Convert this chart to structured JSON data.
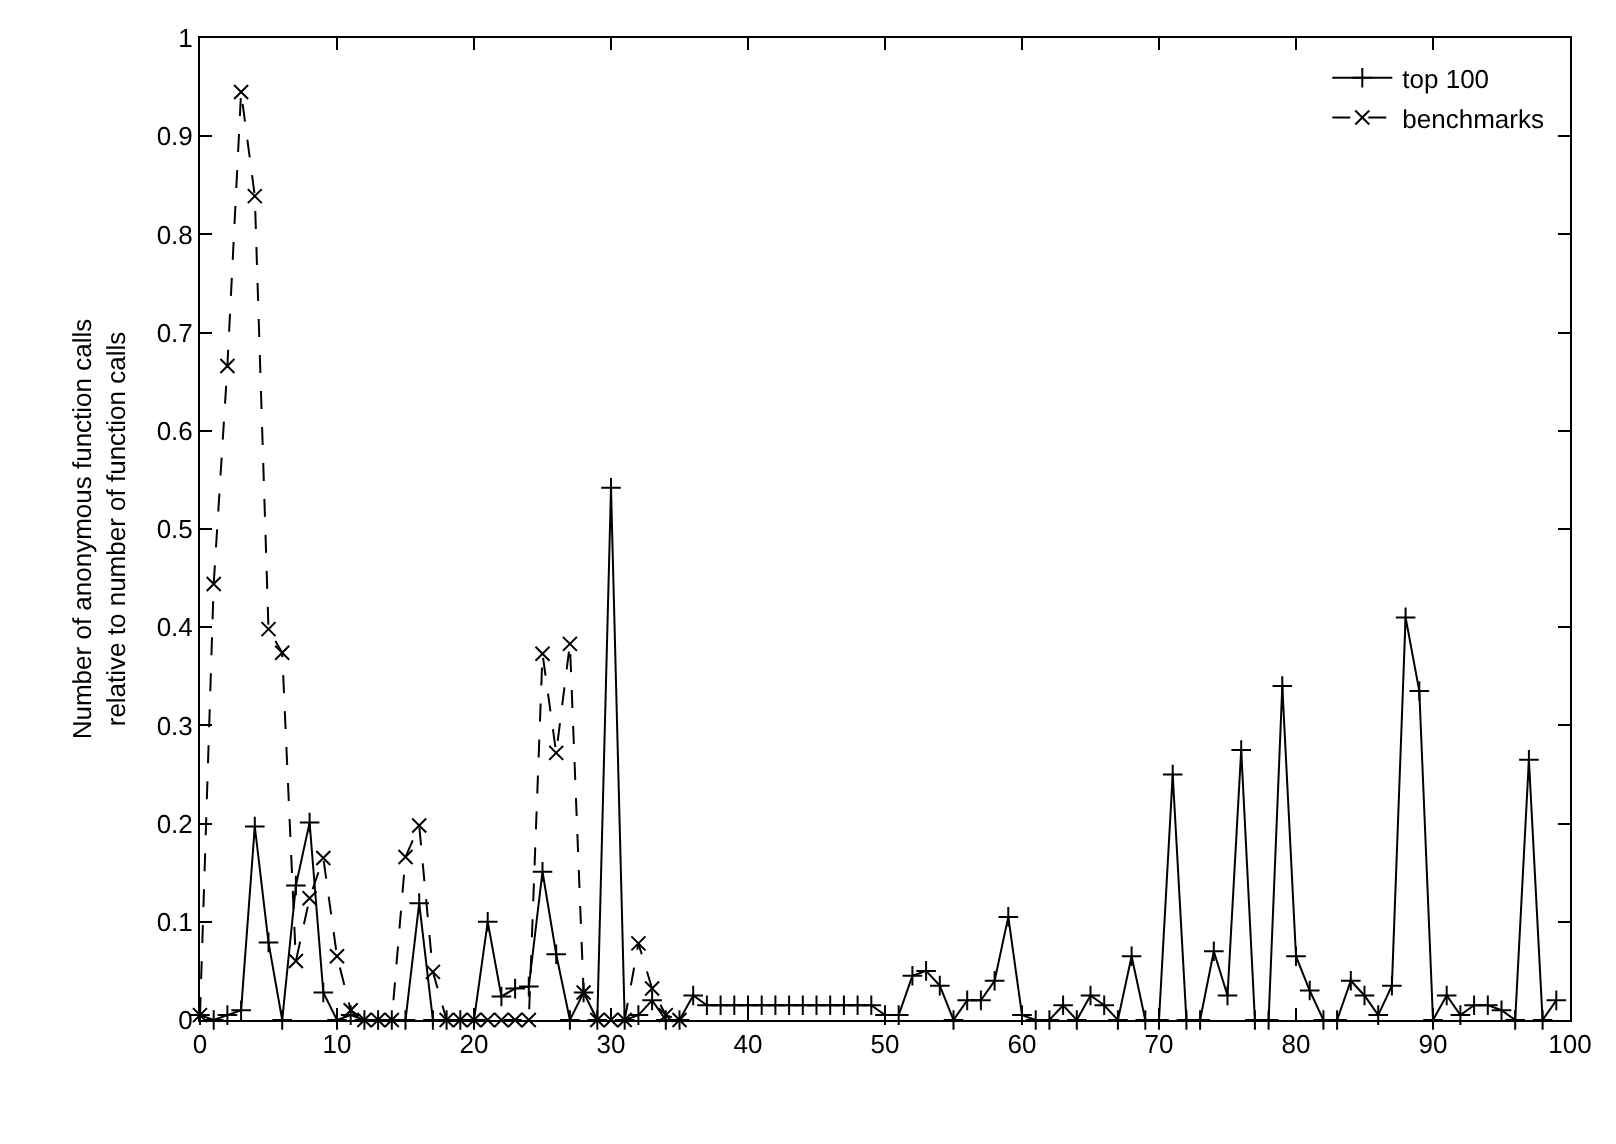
{
  "chart_data": {
    "type": "line",
    "ylabel": "Number of anonymous function calls\nrelative to number of function calls",
    "x": [
      0,
      1,
      2,
      3,
      4,
      5,
      6,
      7,
      8,
      9,
      10,
      11,
      12,
      13,
      14,
      15,
      16,
      17,
      18,
      19,
      20,
      21,
      22,
      23,
      24,
      25,
      26,
      27,
      28,
      29,
      30,
      31,
      32,
      33,
      34,
      35,
      36,
      37,
      38,
      39,
      40,
      41,
      42,
      43,
      44,
      45,
      46,
      47,
      48,
      49,
      50,
      51,
      52,
      53,
      54,
      55,
      56,
      57,
      58,
      59,
      60,
      61,
      62,
      63,
      64,
      65,
      66,
      67,
      68,
      69,
      70,
      71,
      72,
      73,
      74,
      75,
      76,
      77,
      78,
      79,
      80,
      81,
      82,
      83,
      84,
      85,
      86,
      87,
      88,
      89,
      90,
      91,
      92,
      93,
      94,
      95,
      96,
      97,
      98,
      99
    ],
    "series": [
      {
        "name": "top 100",
        "color": "#000000",
        "marker": "cross",
        "line_style": "solid",
        "values": [
          0.005,
          0,
          0.005,
          0.01,
          0.197,
          0.079,
          0,
          0.137,
          0.201,
          0.028,
          0,
          0.005,
          0,
          0,
          0,
          0,
          0.119,
          0,
          0,
          0,
          0,
          0.1,
          0.024,
          0.032,
          0.034,
          0.151,
          0.067,
          0,
          0.028,
          0,
          0.542,
          0,
          0.005,
          0.02,
          0,
          0,
          0.025,
          0.015,
          0.015,
          0.015,
          0.015,
          0.015,
          0.015,
          0.015,
          0.015,
          0.015,
          0.015,
          0.015,
          0.015,
          0.015,
          0.005,
          0.005,
          0.045,
          0.05,
          0.035,
          0,
          0.02,
          0.02,
          0.04,
          0.105,
          0.005,
          0,
          0,
          0.015,
          0,
          0.025,
          0.015,
          0,
          0.065,
          0,
          0,
          0.25,
          0,
          0,
          0.07,
          0.025,
          0.275,
          0,
          0,
          0.34,
          0.065,
          0.03,
          0,
          0,
          0.04,
          0.025,
          0.005,
          0.035,
          0.41,
          0.335,
          0,
          0.025,
          0.005,
          0.015,
          0.015,
          0.01,
          0,
          0.265,
          0,
          0.02
        ]
      },
      {
        "name": "benchmarks",
        "color": "#000000",
        "marker": "x",
        "line_style": "dashed",
        "x": [
          0,
          1,
          2,
          3,
          4,
          5,
          6,
          7,
          8,
          9,
          10,
          11,
          12,
          13,
          14,
          15,
          16,
          17,
          18,
          19,
          20,
          21,
          22,
          23,
          24,
          25,
          26,
          27,
          28,
          29,
          30,
          31,
          32,
          33,
          34,
          35
        ],
        "values": [
          0.005,
          0.444,
          0.666,
          0.945,
          0.839,
          0.398,
          0.374,
          0.06,
          0.124,
          0.165,
          0.065,
          0.01,
          0,
          0,
          0,
          0.166,
          0.198,
          0.049,
          0,
          0,
          0,
          0,
          0,
          0,
          0,
          0.373,
          0.272,
          0.383,
          0.028,
          0,
          0,
          0,
          0.078,
          0.032,
          0.005,
          0
        ]
      }
    ],
    "xlim": [
      0,
      100
    ],
    "xticks": [
      0,
      10,
      20,
      30,
      40,
      50,
      60,
      70,
      80,
      90,
      100
    ],
    "ylim": [
      0,
      1
    ],
    "yticks": [
      0,
      0.1,
      0.2,
      0.3,
      0.4,
      0.5,
      0.6,
      0.7,
      0.8,
      0.9,
      1
    ],
    "legend": "top right"
  }
}
